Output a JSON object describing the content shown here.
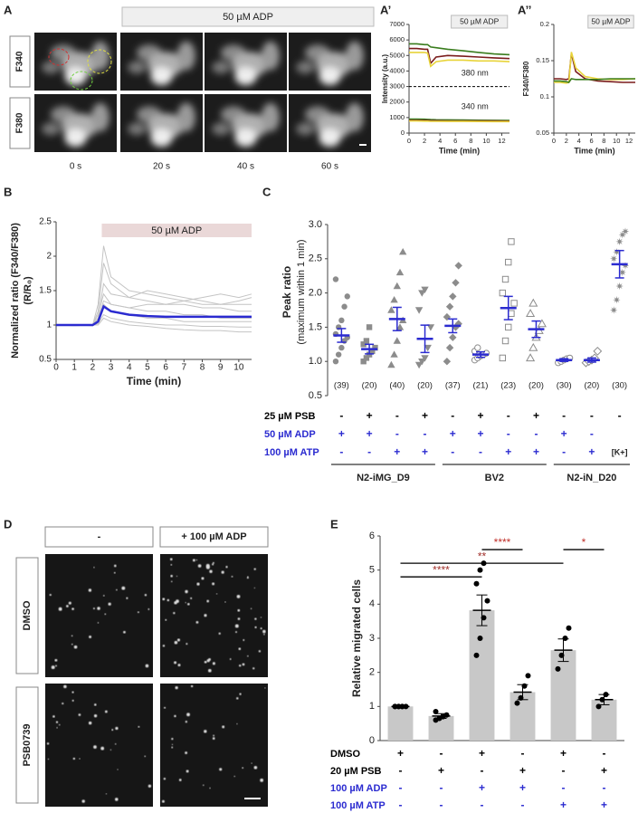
{
  "panels": {
    "A": {
      "label": "A",
      "header": "50 µM ADP",
      "rows": [
        "F340",
        "F380"
      ],
      "columns": [
        "0 s",
        "20 s",
        "40 s",
        "60 s"
      ]
    },
    "D": {
      "label": "D",
      "columns": [
        "-",
        "+ 100 µM ADP"
      ],
      "rows": [
        "DMSO",
        "PSB0739"
      ]
    }
  },
  "chart_data": [
    {
      "type": "line",
      "label": "A’",
      "banner": "50 µM ADP",
      "x_label": "Time (min)",
      "y_label": "Intensity (a.u.)",
      "annotations": [
        "380 nm",
        "340 nm"
      ],
      "x": [
        0,
        1,
        2,
        2.4,
        2.8,
        3.5,
        5,
        7,
        9,
        11,
        13
      ],
      "xlim": [
        0,
        13
      ],
      "xticks": [
        0,
        2,
        4,
        6,
        8,
        10,
        12
      ],
      "ylim": [
        0,
        7000
      ],
      "yticks": [
        0,
        1000,
        2000,
        3000,
        4000,
        5000,
        6000,
        7000
      ],
      "reference_lines": [
        3000
      ],
      "series": [
        {
          "color": "#3a7d1e",
          "values": [
            5750,
            5750,
            5700,
            5700,
            5550,
            5500,
            5400,
            5300,
            5200,
            5100,
            5050
          ]
        },
        {
          "color": "#7a1c1c",
          "values": [
            5450,
            5450,
            5400,
            5400,
            4500,
            4900,
            5000,
            4950,
            4900,
            4850,
            4800
          ]
        },
        {
          "color": "#e8d43a",
          "values": [
            5200,
            5200,
            5200,
            5150,
            4300,
            4600,
            4700,
            4700,
            4650,
            4650,
            4600
          ]
        },
        {
          "color": "#3a7d1e",
          "values": [
            900,
            900,
            890,
            880,
            870,
            860,
            850,
            840,
            830,
            820,
            810
          ]
        },
        {
          "color": "#7a1c1c",
          "values": [
            820,
            820,
            810,
            810,
            800,
            800,
            790,
            790,
            780,
            780,
            770
          ]
        },
        {
          "color": "#e8d43a",
          "values": [
            780,
            780,
            770,
            770,
            760,
            760,
            750,
            750,
            745,
            740,
            740
          ]
        }
      ]
    },
    {
      "type": "line",
      "label": "A’’",
      "banner": "50 µM ADP",
      "x_label": "Time (min)",
      "y_label": "F340/F380",
      "x": [
        0,
        1,
        2,
        2.4,
        2.8,
        3.5,
        5,
        7,
        9,
        11,
        13
      ],
      "xlim": [
        0,
        13
      ],
      "xticks": [
        0,
        2,
        4,
        6,
        8,
        10,
        12
      ],
      "ylim": [
        0.05,
        0.2
      ],
      "yticks": [
        0.05,
        0.1,
        0.15,
        0.2
      ],
      "series": [
        {
          "color": "#7a1c1c",
          "values": [
            0.125,
            0.125,
            0.124,
            0.125,
            0.16,
            0.135,
            0.125,
            0.122,
            0.121,
            0.12,
            0.12
          ]
        },
        {
          "color": "#e8d43a",
          "values": [
            0.12,
            0.12,
            0.119,
            0.12,
            0.162,
            0.14,
            0.128,
            0.125,
            0.124,
            0.124,
            0.125
          ]
        },
        {
          "color": "#3a7d1e",
          "values": [
            0.122,
            0.122,
            0.121,
            0.12,
            0.125,
            0.124,
            0.124,
            0.124,
            0.125,
            0.125,
            0.125
          ]
        }
      ]
    },
    {
      "type": "line",
      "label": "B",
      "banner": "50 µM ADP",
      "shaded_range": [
        2.5,
        10.7
      ],
      "shade_color": "#ead8d8",
      "x_label": "Time (min)",
      "y_label": "Normalized ratio (F340/F380)",
      "y_label2": "(R/R₀)",
      "x": [
        0,
        1,
        2,
        2.3,
        2.6,
        3,
        4,
        5,
        6,
        7,
        8,
        9,
        10,
        10.7
      ],
      "xlim": [
        0,
        10.7
      ],
      "xticks": [
        0,
        1,
        2,
        3,
        4,
        5,
        6,
        7,
        8,
        9,
        10
      ],
      "ylim": [
        0.5,
        2.5
      ],
      "yticks": [
        0.5,
        1,
        1.5,
        2,
        2.5
      ],
      "series": [
        {
          "color": "#c4c4c4",
          "values": [
            1,
            1,
            1,
            1.3,
            2.15,
            1.7,
            1.5,
            1.45,
            1.4,
            1.35,
            1.3,
            1.3,
            1.35,
            1.4
          ]
        },
        {
          "color": "#c4c4c4",
          "values": [
            1,
            1,
            1,
            1.2,
            1.9,
            1.6,
            1.4,
            1.35,
            1.3,
            1.3,
            1.25,
            1.25,
            1.2,
            1.2
          ]
        },
        {
          "color": "#c4c4c4",
          "values": [
            1,
            1,
            0.99,
            1.1,
            1.6,
            1.45,
            1.4,
            1.5,
            1.45,
            1.4,
            1.35,
            1.3,
            1.3,
            1.3
          ]
        },
        {
          "color": "#c4c4c4",
          "values": [
            1,
            1,
            1,
            1.05,
            1.3,
            1.2,
            1.15,
            1.1,
            1.1,
            1.05,
            1.05,
            1.05,
            1.05,
            1.05
          ]
        },
        {
          "color": "#c4c4c4",
          "values": [
            1,
            1,
            1,
            1,
            1.1,
            1.05,
            1,
            0.98,
            0.95,
            0.93,
            0.92,
            0.92,
            0.9,
            0.9
          ]
        },
        {
          "color": "#c4c4c4",
          "values": [
            1,
            0.99,
            1,
            1.15,
            1.45,
            1.3,
            1.25,
            1.2,
            1.2,
            1.15,
            1.15,
            1.1,
            1.1,
            1.1
          ]
        },
        {
          "color": "#c4c4c4",
          "values": [
            1,
            1,
            1,
            1.02,
            1.15,
            1.1,
            1.05,
            1.02,
            1,
            1,
            0.98,
            0.98,
            0.97,
            0.97
          ]
        },
        {
          "color": "#c4c4c4",
          "values": [
            1,
            1,
            1,
            1.1,
            1.35,
            1.3,
            1.25,
            1.3,
            1.3,
            1.35,
            1.4,
            1.45,
            1.4,
            1.45
          ]
        },
        {
          "color": "#2b2bd0",
          "values": [
            1,
            1,
            1,
            1.05,
            1.27,
            1.2,
            1.15,
            1.13,
            1.12,
            1.12,
            1.12,
            1.12,
            1.12,
            1.12
          ]
        }
      ]
    },
    {
      "type": "strip",
      "label": "C",
      "y_label": "Peak ratio",
      "y_label2": "(maximum within 1 min)",
      "ylim": [
        0.5,
        3.0
      ],
      "yticks": [
        0.5,
        {
          "value": 1,
          "label": "1.0"
        },
        1.5,
        {
          "value": 2,
          "label": "2.0"
        },
        2.5,
        {
          "value": 3,
          "label": "3.0"
        }
      ],
      "categories": [
        "(39)",
        "(20)",
        "(40)",
        "(20)",
        "(37)",
        "(21)",
        "(23)",
        "(20)",
        "(30)",
        "(20)",
        "(30)"
      ],
      "color": "#2b2bd0",
      "point_color": "#8c8c8c",
      "markers": [
        "circle",
        "square",
        "triangle",
        "triangle-down",
        "diamond",
        "circle-open",
        "square-open",
        "triangle-open",
        "circle-open",
        "diamond-open",
        "star"
      ],
      "values": [
        1.38,
        1.18,
        1.62,
        1.33,
        1.52,
        1.1,
        1.78,
        1.47,
        1.02,
        1.02,
        2.42
      ],
      "errors": [
        0.1,
        0.07,
        0.17,
        0.2,
        0.1,
        0.04,
        0.17,
        0.12,
        0.02,
        0.03,
        0.2
      ],
      "points": [
        [
          1.0,
          1.1,
          1.2,
          1.3,
          1.35,
          1.4,
          1.5,
          1.6,
          1.8,
          1.95,
          2.2
        ],
        [
          1.0,
          1.05,
          1.1,
          1.15,
          1.2,
          1.25,
          1.3,
          1.5
        ],
        [
          0.95,
          1.1,
          1.3,
          1.5,
          1.6,
          1.75,
          1.9,
          2.1,
          2.3,
          2.6
        ],
        [
          0.95,
          1.0,
          1.05,
          1.2,
          1.5,
          1.75,
          2.0,
          2.05
        ],
        [
          1.0,
          1.2,
          1.35,
          1.5,
          1.55,
          1.65,
          1.8,
          1.95,
          2.15,
          2.4
        ],
        [
          1.02,
          1.05,
          1.08,
          1.1,
          1.12,
          1.15,
          1.2
        ],
        [
          1.05,
          1.3,
          1.5,
          1.7,
          1.85,
          2.0,
          2.2,
          2.45,
          2.75
        ],
        [
          1.05,
          1.2,
          1.35,
          1.45,
          1.55,
          1.7,
          1.85
        ],
        [
          0.98,
          1.0,
          1.02,
          1.04,
          1.05
        ],
        [
          0.98,
          1.0,
          1.02,
          1.05,
          1.15
        ],
        [
          1.75,
          1.9,
          2.1,
          2.3,
          2.4,
          2.5,
          2.6,
          2.75,
          2.85,
          2.9
        ]
      ],
      "conditions": [
        {
          "label": "25 µM PSB",
          "color": "#000000",
          "values": [
            "-",
            "+",
            "-",
            "+",
            "-",
            "+",
            "-",
            "+",
            "-",
            "-",
            "-"
          ]
        },
        {
          "label": "50 µM ADP",
          "color": "#2b2bd0",
          "values": [
            "+",
            "+",
            "-",
            "-",
            "+",
            "+",
            "-",
            "-",
            "+",
            "-",
            null
          ]
        },
        {
          "label": "100 µM ATP",
          "color": "#2b2bd0",
          "values": [
            "-",
            "-",
            "+",
            "+",
            "-",
            "-",
            "+",
            "+",
            "-",
            "+",
            "[K+]"
          ]
        }
      ],
      "groups": [
        "N2-iMG_D9",
        "BV2",
        "N2-iN_D20"
      ]
    },
    {
      "type": "bar",
      "label": "E",
      "y_label": "Relative migrated cells",
      "ylim": [
        0,
        6
      ],
      "yticks": [
        0,
        1,
        2,
        3,
        4,
        5,
        6
      ],
      "color": "#c8c8c8",
      "categories": [
        null,
        null,
        null,
        null,
        null,
        null
      ],
      "values": [
        1.0,
        0.72,
        3.82,
        1.42,
        2.65,
        1.2
      ],
      "errors": [
        0.02,
        0.07,
        0.45,
        0.22,
        0.33,
        0.15
      ],
      "points": [
        [
          1,
          1,
          1,
          1,
          1,
          1,
          1
        ],
        [
          0.6,
          0.65,
          0.7,
          0.75,
          0.85
        ],
        [
          2.5,
          3.0,
          3.6,
          4.1,
          4.6,
          5.0,
          5.2
        ],
        [
          1.1,
          1.25,
          1.6,
          1.9
        ],
        [
          2.1,
          2.5,
          3.0,
          3.3
        ],
        [
          1.0,
          1.2,
          1.35
        ]
      ],
      "significance": [
        {
          "label": "****",
          "from": 0,
          "to": 2,
          "y": 4.8,
          "color": "#a0302a"
        },
        {
          "label": "**",
          "from": 0,
          "to": 4,
          "y": 5.2,
          "color": "#a0302a"
        },
        {
          "label": "****",
          "from": 2,
          "to": 3,
          "y": 5.6,
          "color": "#c0302a"
        },
        {
          "label": "*",
          "from": 4,
          "to": 5,
          "y": 5.6,
          "color": "#c0302a"
        }
      ],
      "conditions": [
        {
          "label": "DMSO",
          "color": "#000000",
          "values": [
            "+",
            "-",
            "+",
            "-",
            "+",
            "-"
          ]
        },
        {
          "label": "20 µM PSB",
          "color": "#000000",
          "values": [
            "-",
            "+",
            "-",
            "+",
            "-",
            "+"
          ]
        },
        {
          "label": "100 µM ADP",
          "color": "#2b2bd0",
          "values": [
            "-",
            "-",
            "+",
            "+",
            "-",
            "-"
          ]
        },
        {
          "label": "100 µM ATP",
          "color": "#2b2bd0",
          "values": [
            "-",
            "-",
            "-",
            "-",
            "+",
            "+"
          ]
        }
      ]
    }
  ]
}
